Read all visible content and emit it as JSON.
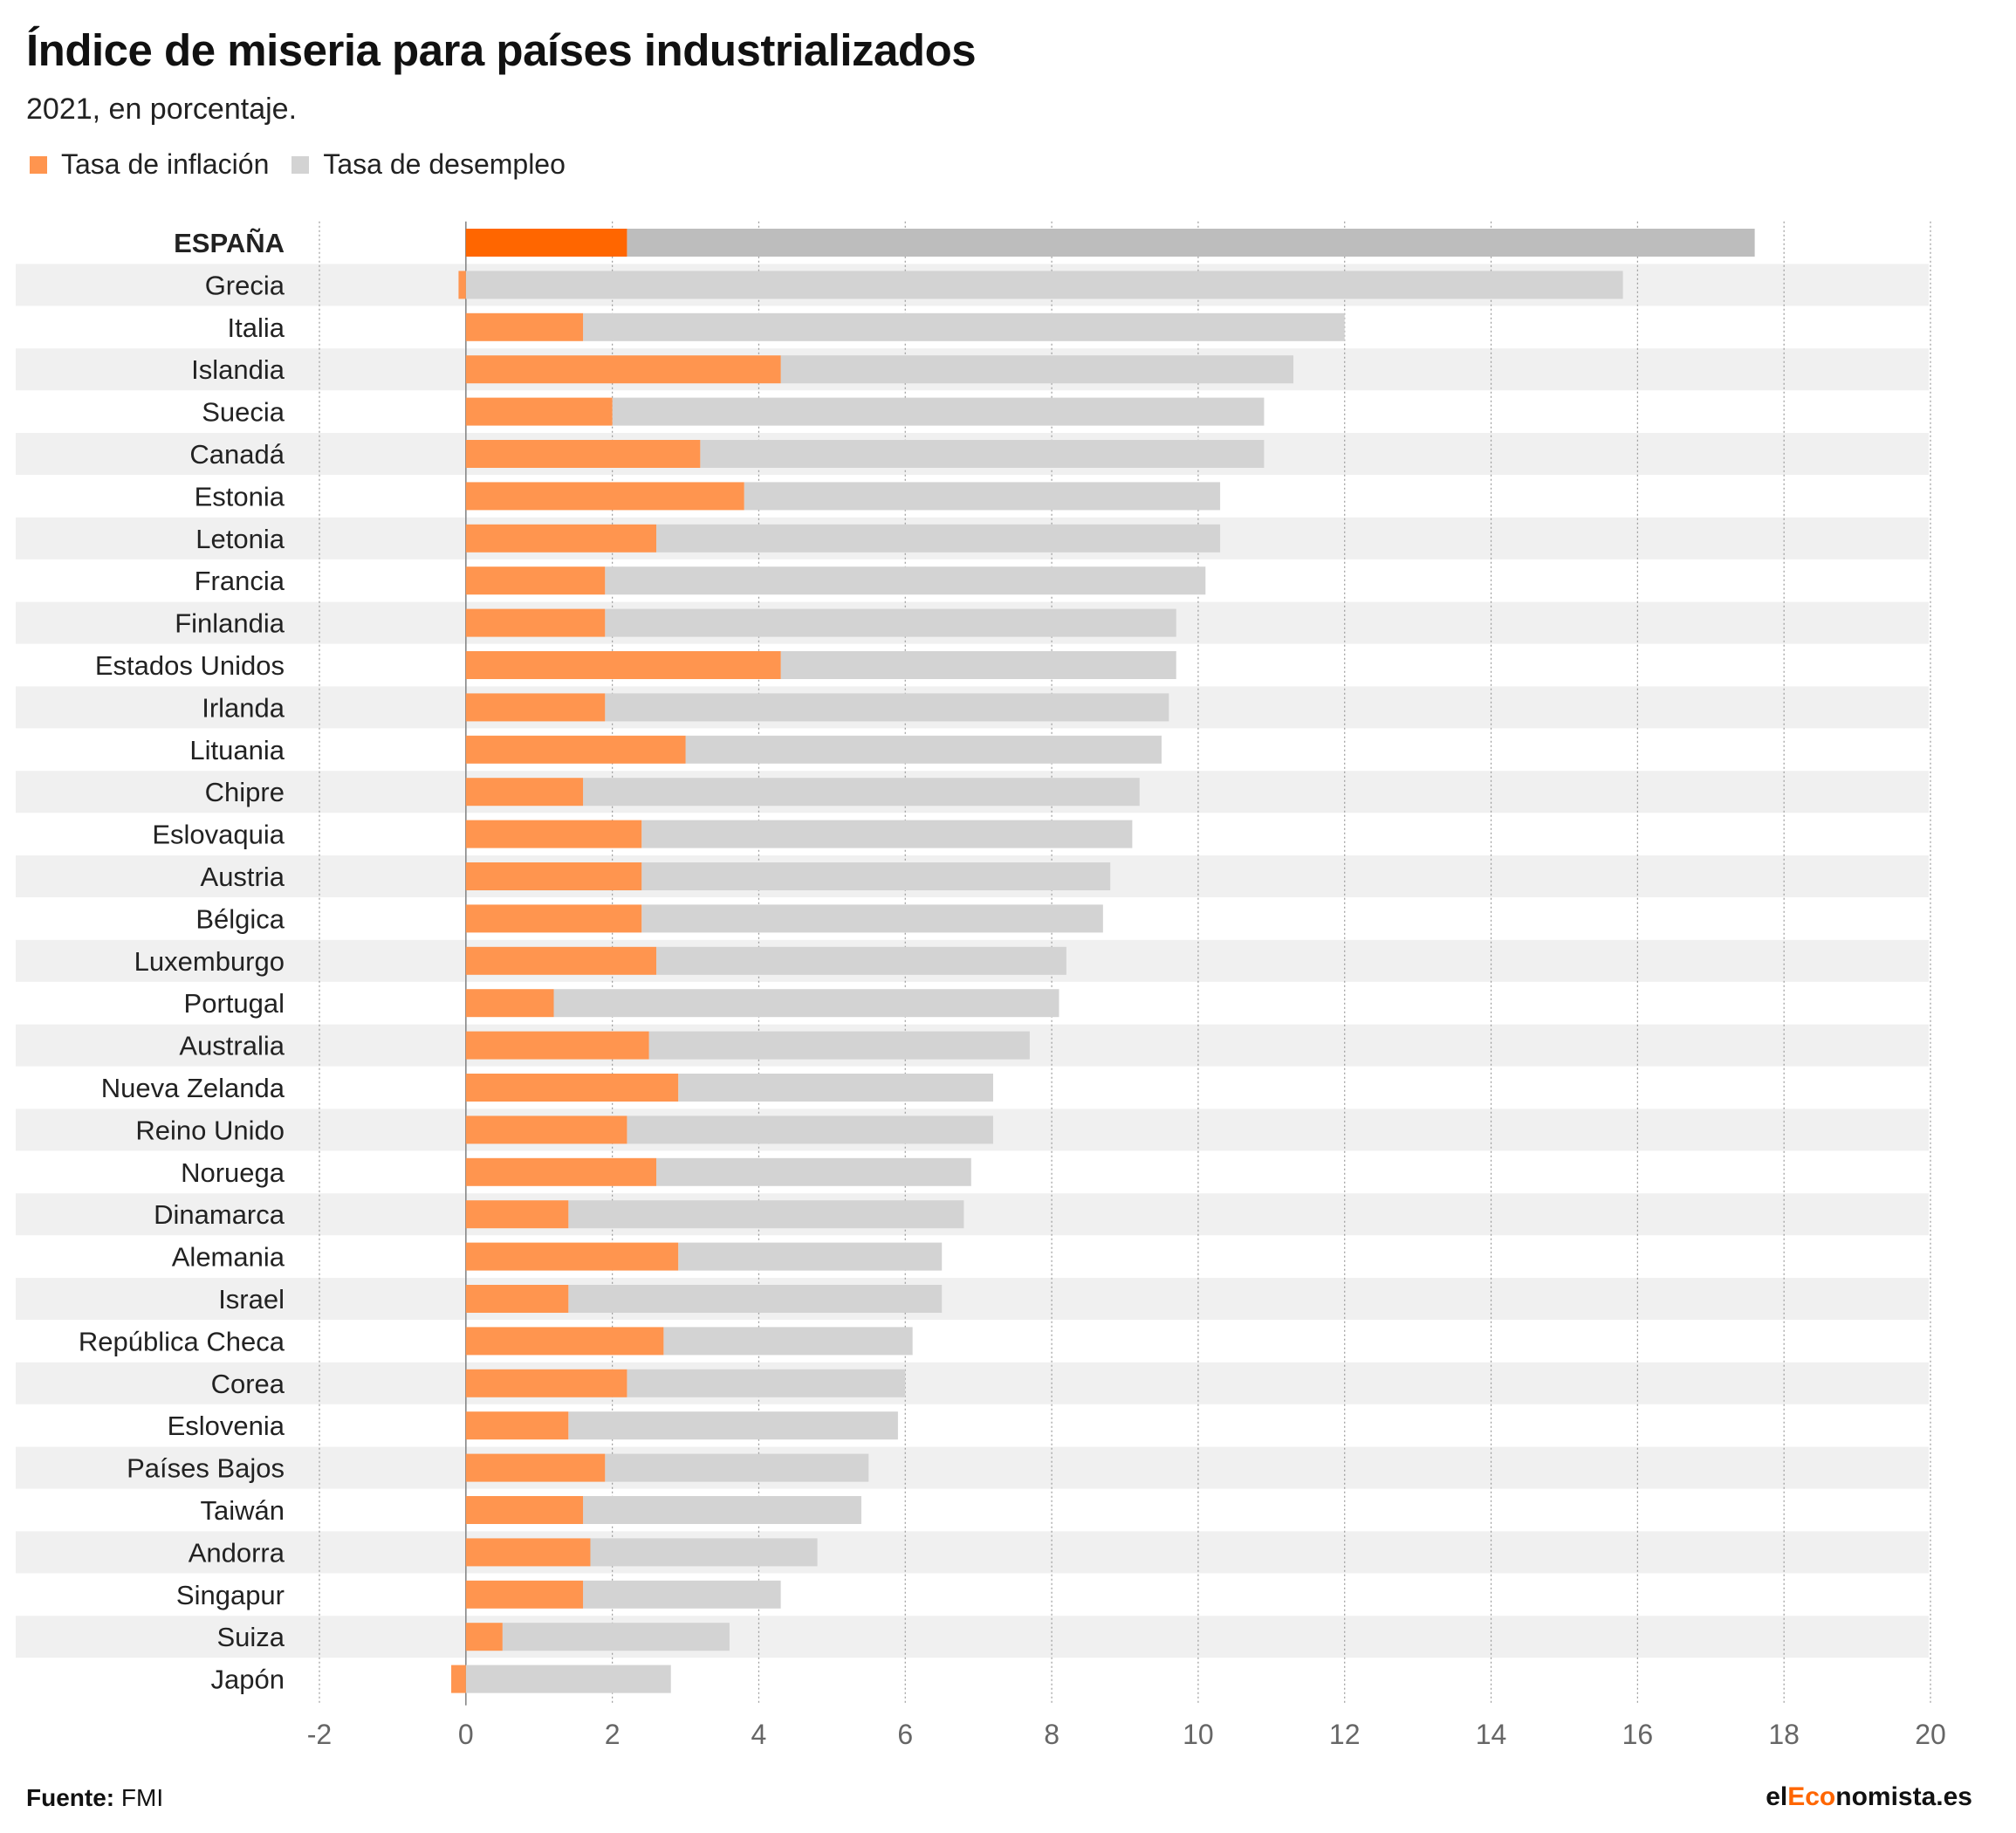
{
  "title": "Índice de miseria para países industrializados",
  "subtitle": "2021, en porcentaje.",
  "legend": {
    "inflation_label": "Tasa de inflación",
    "unemployment_label": "Tasa de desempleo"
  },
  "colors": {
    "inflation": "#ff954f",
    "inflation_highlight": "#ff6600",
    "unemployment": "#d3d3d3",
    "unemployment_highlight": "#bdbdbd",
    "stripe": "#f0f0f0",
    "brand_accent": "#ff6600"
  },
  "footer": {
    "source_label": "Fuente:",
    "source_value": "FMI",
    "brand_prefix": "el",
    "brand_accent": "Eco",
    "brand_suffix": "nomista.es"
  },
  "chart_data": {
    "type": "bar",
    "orientation": "horizontal",
    "stacked": true,
    "highlight_category": "ESPAÑA",
    "categories": [
      "ESPAÑA",
      "Grecia",
      "Italia",
      "Islandia",
      "Suecia",
      "Canadá",
      "Estonia",
      "Letonia",
      "Francia",
      "Finlandia",
      "Estados Unidos",
      "Irlanda",
      "Lituania",
      "Chipre",
      "Eslovaquia",
      "Austria",
      "Bélgica",
      "Luxemburgo",
      "Portugal",
      "Australia",
      "Nueva Zelanda",
      "Reino Unido",
      "Noruega",
      "Dinamarca",
      "Alemania",
      "Israel",
      "República Checa",
      "Corea",
      "Eslovenia",
      "Países Bajos",
      "Taiwán",
      "Andorra",
      "Singapur",
      "Suiza",
      "Japón"
    ],
    "series": [
      {
        "name": "Tasa de inflación",
        "values": [
          2.2,
          -0.1,
          1.6,
          4.3,
          2.0,
          3.2,
          3.8,
          2.6,
          1.9,
          1.9,
          4.3,
          1.9,
          3.0,
          1.6,
          2.4,
          2.4,
          2.4,
          2.6,
          1.2,
          2.5,
          2.9,
          2.2,
          2.6,
          1.4,
          2.9,
          1.4,
          2.7,
          2.2,
          1.4,
          1.9,
          1.6,
          1.7,
          1.6,
          0.5,
          -0.2
        ]
      },
      {
        "name": "Tasa de desempleo",
        "values": [
          15.4,
          15.8,
          10.4,
          7.0,
          8.9,
          7.7,
          6.5,
          7.7,
          8.2,
          7.8,
          5.4,
          7.7,
          6.5,
          7.6,
          6.7,
          6.4,
          6.3,
          5.6,
          6.9,
          5.2,
          4.3,
          5.0,
          4.3,
          5.4,
          3.6,
          5.1,
          3.4,
          3.8,
          4.5,
          3.6,
          3.8,
          3.1,
          2.7,
          3.1,
          2.8
        ]
      }
    ],
    "xlim": [
      -2,
      20
    ],
    "xticks": [
      -2,
      0,
      2,
      4,
      6,
      8,
      10,
      12,
      14,
      16,
      18,
      20
    ],
    "xlabel": "",
    "ylabel": "",
    "grid": true,
    "legend_position": "top-left"
  }
}
